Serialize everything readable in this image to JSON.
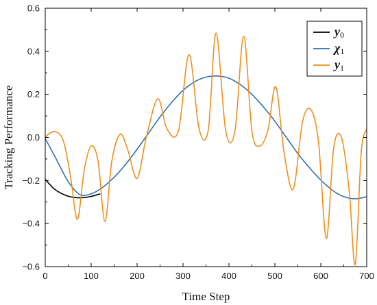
{
  "chart_data": {
    "type": "line",
    "xlabel": "Time Step",
    "ylabel": "Tracking Performance",
    "xlim": [
      0,
      700
    ],
    "ylim": [
      -0.6,
      0.6
    ],
    "xticks": [
      0,
      100,
      200,
      300,
      400,
      500,
      600,
      700
    ],
    "yticks": [
      -0.6,
      -0.4,
      -0.2,
      0.0,
      0.2,
      0.4,
      0.6
    ],
    "ytick_labels": [
      "−0.6",
      "−0.4",
      "−0.2",
      "0.0",
      "0.2",
      "0.4",
      "0.6"
    ],
    "grid": false,
    "legend_position": "top-right",
    "series": [
      {
        "name": "y0",
        "color": "#000000",
        "x": [
          0,
          20,
          40,
          60,
          80,
          100,
          120
        ],
        "y": [
          -0.195,
          -0.24,
          -0.265,
          -0.278,
          -0.28,
          -0.274,
          -0.262
        ]
      },
      {
        "name": "χ1",
        "color": "#2e6fb0",
        "x": [
          0,
          25,
          50,
          75,
          100,
          125,
          150,
          175,
          200,
          225,
          250,
          275,
          300,
          325,
          350,
          375,
          400,
          425,
          450,
          475,
          500,
          525,
          550,
          575,
          600,
          625,
          650,
          675,
          700
        ],
        "y": [
          -0.005,
          -0.105,
          -0.205,
          -0.265,
          -0.262,
          -0.232,
          -0.185,
          -0.125,
          -0.055,
          0.02,
          0.095,
          0.162,
          0.218,
          0.258,
          0.28,
          0.285,
          0.275,
          0.245,
          0.2,
          0.142,
          0.075,
          0.0,
          -0.075,
          -0.14,
          -0.198,
          -0.245,
          -0.275,
          -0.285,
          -0.275
        ]
      },
      {
        "name": "y1",
        "color": "#f28e1c",
        "x": [
          0,
          10,
          25,
          40,
          55,
          70,
          85,
          100,
          115,
          130,
          145,
          163,
          180,
          200,
          220,
          245,
          265,
          290,
          313,
          335,
          355,
          372,
          393,
          413,
          432,
          450,
          467,
          485,
          502,
          520,
          540,
          560,
          578,
          595,
          612,
          628,
          645,
          662,
          675,
          688,
          700
        ],
        "y": [
          0.0,
          0.02,
          0.025,
          -0.02,
          -0.18,
          -0.38,
          -0.15,
          -0.04,
          -0.11,
          -0.39,
          -0.11,
          0.015,
          -0.06,
          -0.19,
          0.0,
          0.18,
          0.04,
          0.03,
          0.385,
          0.04,
          0.035,
          0.485,
          0.03,
          0.03,
          0.47,
          0.03,
          -0.04,
          0.035,
          0.235,
          -0.07,
          -0.24,
          0.07,
          0.13,
          -0.02,
          -0.47,
          -0.05,
          0.0,
          -0.25,
          -0.59,
          -0.07,
          0.04
        ]
      }
    ]
  }
}
